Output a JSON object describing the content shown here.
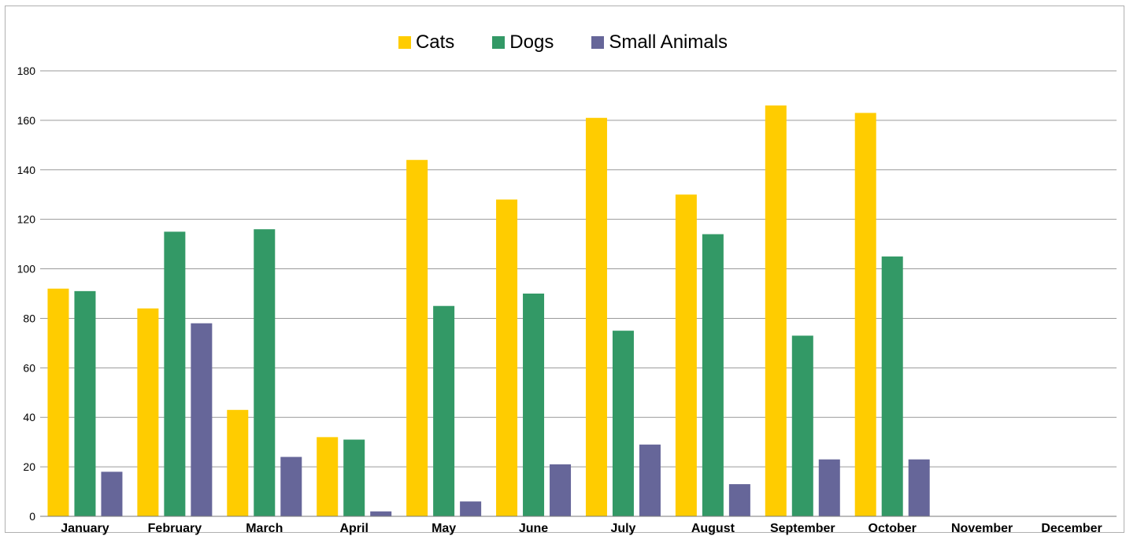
{
  "chart_data": {
    "type": "bar",
    "categories": [
      "January",
      "February",
      "March",
      "April",
      "May",
      "June",
      "July",
      "August",
      "September",
      "October",
      "November",
      "December"
    ],
    "series": [
      {
        "name": "Cats",
        "color": "#FFCC00",
        "values": [
          92,
          84,
          43,
          32,
          144,
          128,
          161,
          130,
          166,
          163,
          0,
          0
        ]
      },
      {
        "name": "Dogs",
        "color": "#339966",
        "values": [
          91,
          115,
          116,
          31,
          85,
          90,
          75,
          114,
          73,
          105,
          0,
          0
        ]
      },
      {
        "name": "Small Animals",
        "color": "#666699",
        "values": [
          18,
          78,
          24,
          2,
          6,
          21,
          29,
          13,
          23,
          23,
          0,
          0
        ]
      }
    ],
    "ylim": [
      0,
      180
    ],
    "yticks": [
      0,
      20,
      40,
      60,
      80,
      100,
      120,
      140,
      160,
      180
    ],
    "grid": true,
    "legend_position": "top-center",
    "title": "",
    "xlabel": "",
    "ylabel": ""
  }
}
